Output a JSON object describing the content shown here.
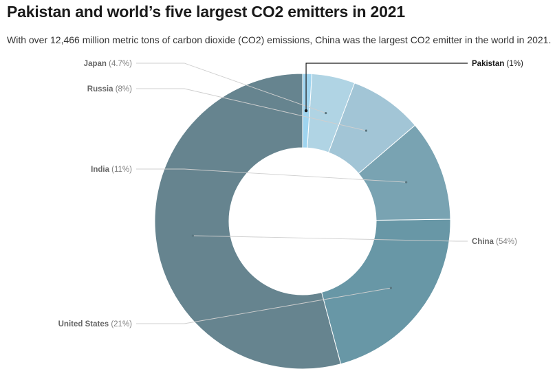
{
  "title": "Pakistan and world’s five largest CO2 emitters in 2021",
  "subtitle": "With over 12,466 million metric tons of carbon dioxide (CO2) emissions, China was the largest CO2 emitter in the world in 2021.",
  "chart_data": {
    "type": "pie",
    "variant": "donut",
    "title": "Pakistan and world’s five largest CO2 emitters in 2021",
    "slices": [
      {
        "label": "China",
        "percent_text": "(54%)",
        "value": 54,
        "color": "#66848f"
      },
      {
        "label": "United States",
        "percent_text": "(21%)",
        "value": 21,
        "color": "#6897a6"
      },
      {
        "label": "India",
        "percent_text": "(11%)",
        "value": 11,
        "color": "#79a3b2"
      },
      {
        "label": "Russia",
        "percent_text": "(8%)",
        "value": 8,
        "color": "#a2c5d6"
      },
      {
        "label": "Japan",
        "percent_text": "(4.7%)",
        "value": 4.7,
        "color": "#b0d4e4"
      },
      {
        "label": "Pakistan",
        "percent_text": "(1%)",
        "value": 1,
        "color": "#9fd4ef",
        "highlighted": true
      }
    ]
  }
}
